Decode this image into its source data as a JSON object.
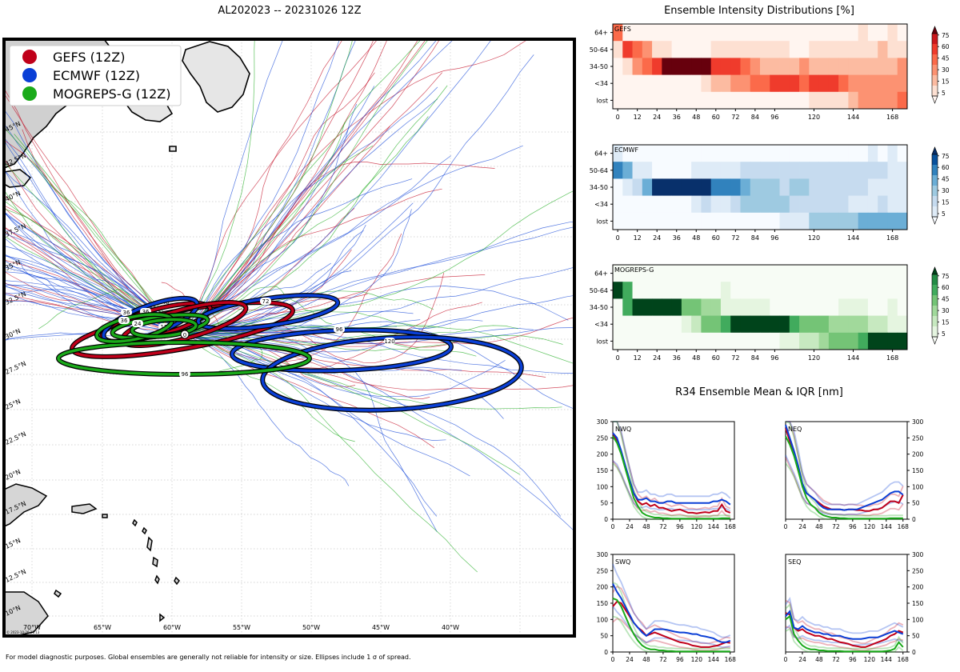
{
  "main_title": "AL202023 -- 20231026 12Z",
  "footer": "For model diagnostic purposes. Global ensembles are generally not reliable for intensity or size. Ellipses include 1 σ of spread.",
  "map": {
    "watermark": "© 2023-10-26 21:13",
    "lon_labels": [
      "70°W",
      "65°W",
      "60°W",
      "55°W",
      "50°W",
      "45°W",
      "40°W"
    ],
    "lat_labels": [
      "10°N",
      "12.5°N",
      "15°N",
      "17.5°N",
      "20°N",
      "22.5°N",
      "25°N",
      "27.5°N",
      "30°N",
      "32.5°N",
      "35°N",
      "37.5°N",
      "40°N",
      "42.5°N",
      "45°N"
    ],
    "legend": [
      {
        "label": "GEFS (12Z)",
        "color": "#c0001a"
      },
      {
        "label": "ECMWF (12Z)",
        "color": "#0a3fd6"
      },
      {
        "label": "MOGREPS-G (12Z)",
        "color": "#1aaa1a"
      }
    ]
  },
  "chart_data": [
    {
      "type": "heatmap",
      "title": "Ensemble Intensity Distributions [%]",
      "panel": "GEFS",
      "rows": [
        "64+",
        "50-64",
        "34-50",
        "<34",
        "lost"
      ],
      "x": [
        0,
        6,
        12,
        18,
        24,
        30,
        36,
        42,
        48,
        54,
        60,
        66,
        72,
        78,
        84,
        90,
        96,
        102,
        108,
        114,
        120,
        126,
        132,
        138,
        144,
        150,
        156,
        162,
        168,
        174
      ],
      "x_ticks": [
        0,
        12,
        24,
        36,
        48,
        60,
        72,
        84,
        96,
        120,
        144,
        168
      ],
      "colorbar_ticks": [
        5,
        15,
        30,
        45,
        60,
        75
      ],
      "values": [
        [
          60,
          5,
          5,
          5,
          5,
          5,
          5,
          5,
          5,
          5,
          5,
          5,
          5,
          5,
          5,
          5,
          5,
          5,
          5,
          5,
          5,
          5,
          5,
          5,
          5,
          15,
          5,
          5,
          15,
          5
        ],
        [
          25,
          80,
          65,
          45,
          15,
          15,
          5,
          5,
          5,
          5,
          15,
          15,
          15,
          15,
          15,
          15,
          15,
          15,
          5,
          5,
          15,
          15,
          15,
          15,
          15,
          15,
          15,
          30,
          15,
          15
        ],
        [
          5,
          15,
          45,
          60,
          75,
          90,
          90,
          90,
          90,
          90,
          75,
          75,
          75,
          60,
          45,
          30,
          30,
          30,
          30,
          45,
          30,
          30,
          30,
          30,
          30,
          30,
          30,
          30,
          30,
          45
        ],
        [
          5,
          5,
          5,
          5,
          5,
          5,
          5,
          5,
          5,
          15,
          30,
          30,
          45,
          45,
          60,
          60,
          75,
          80,
          80,
          60,
          75,
          75,
          75,
          60,
          45,
          45,
          45,
          45,
          45,
          45
        ],
        [
          5,
          5,
          5,
          5,
          5,
          5,
          5,
          5,
          5,
          5,
          5,
          5,
          5,
          5,
          5,
          5,
          5,
          5,
          5,
          5,
          15,
          15,
          15,
          15,
          30,
          45,
          45,
          45,
          45,
          60
        ]
      ]
    },
    {
      "type": "heatmap",
      "panel": "ECMWF",
      "rows": [
        "64+",
        "50-64",
        "34-50",
        "<34",
        "lost"
      ],
      "x": [
        0,
        6,
        12,
        18,
        24,
        30,
        36,
        42,
        48,
        54,
        60,
        66,
        72,
        78,
        84,
        90,
        96,
        102,
        108,
        114,
        120,
        126,
        132,
        138,
        144,
        150,
        156,
        162,
        168,
        174
      ],
      "x_ticks": [
        0,
        12,
        24,
        36,
        48,
        60,
        72,
        84,
        96,
        120,
        144,
        168
      ],
      "colorbar_ticks": [
        5,
        15,
        30,
        45,
        60,
        75
      ],
      "values": [
        [
          15,
          5,
          5,
          5,
          5,
          5,
          5,
          5,
          5,
          5,
          5,
          5,
          5,
          5,
          5,
          5,
          5,
          5,
          5,
          5,
          5,
          5,
          5,
          5,
          5,
          5,
          15,
          5,
          15,
          5
        ],
        [
          75,
          60,
          15,
          15,
          5,
          5,
          5,
          5,
          15,
          15,
          15,
          15,
          15,
          30,
          30,
          30,
          30,
          30,
          30,
          30,
          30,
          30,
          30,
          30,
          30,
          30,
          30,
          30,
          15,
          15
        ],
        [
          5,
          15,
          30,
          60,
          90,
          90,
          90,
          90,
          90,
          90,
          75,
          75,
          75,
          60,
          45,
          45,
          45,
          30,
          45,
          45,
          30,
          30,
          30,
          30,
          30,
          30,
          15,
          15,
          15,
          15
        ],
        [
          5,
          5,
          5,
          5,
          5,
          5,
          5,
          5,
          15,
          30,
          15,
          15,
          30,
          45,
          45,
          45,
          45,
          45,
          30,
          30,
          30,
          30,
          30,
          30,
          15,
          15,
          15,
          30,
          15,
          15
        ],
        [
          5,
          5,
          5,
          5,
          5,
          5,
          5,
          5,
          5,
          5,
          5,
          5,
          5,
          5,
          5,
          5,
          5,
          15,
          15,
          15,
          45,
          45,
          45,
          45,
          45,
          60,
          60,
          60,
          60,
          60
        ]
      ]
    },
    {
      "type": "heatmap",
      "panel": "MOGREPS-G",
      "rows": [
        "64+",
        "50-64",
        "34-50",
        "<34",
        "lost"
      ],
      "x": [
        0,
        6,
        12,
        18,
        24,
        30,
        36,
        42,
        48,
        54,
        60,
        66,
        72,
        78,
        84,
        90,
        96,
        102,
        108,
        114,
        120,
        126,
        132,
        138,
        144,
        150,
        156,
        162,
        168,
        174
      ],
      "x_ticks": [
        0,
        12,
        24,
        36,
        48,
        60,
        72,
        84,
        96,
        120,
        144,
        168
      ],
      "colorbar_ticks": [
        5,
        15,
        30,
        45,
        60,
        75
      ],
      "values": [
        [
          5,
          5,
          5,
          5,
          5,
          5,
          5,
          5,
          5,
          5,
          5,
          5,
          5,
          5,
          5,
          5,
          5,
          5,
          5,
          5,
          5,
          5,
          5,
          5,
          5,
          5,
          5,
          5,
          5,
          5
        ],
        [
          90,
          75,
          5,
          5,
          5,
          5,
          5,
          5,
          5,
          5,
          5,
          15,
          5,
          5,
          5,
          5,
          5,
          5,
          5,
          5,
          5,
          5,
          5,
          5,
          5,
          5,
          5,
          5,
          5,
          5
        ],
        [
          5,
          75,
          90,
          90,
          90,
          90,
          90,
          60,
          60,
          45,
          45,
          15,
          15,
          15,
          15,
          15,
          5,
          5,
          5,
          5,
          5,
          5,
          5,
          15,
          15,
          15,
          5,
          5,
          15,
          5
        ],
        [
          5,
          5,
          5,
          5,
          5,
          5,
          5,
          15,
          30,
          60,
          60,
          75,
          90,
          90,
          90,
          90,
          90,
          90,
          75,
          60,
          60,
          60,
          45,
          45,
          45,
          45,
          30,
          30,
          15,
          15
        ],
        [
          5,
          5,
          5,
          5,
          5,
          5,
          5,
          5,
          5,
          5,
          5,
          5,
          5,
          5,
          5,
          5,
          5,
          15,
          15,
          30,
          30,
          45,
          60,
          60,
          60,
          75,
          90,
          90,
          90,
          90
        ]
      ]
    },
    {
      "type": "line",
      "title": "R34 Ensemble Mean & IQR [nm]",
      "panel": "NWQ",
      "x": [
        0,
        6,
        12,
        18,
        24,
        30,
        36,
        42,
        48,
        54,
        60,
        66,
        72,
        78,
        84,
        90,
        96,
        102,
        108,
        114,
        120,
        126,
        132,
        138,
        144,
        150,
        156,
        162,
        168
      ],
      "x_ticks": [
        0,
        24,
        48,
        72,
        96,
        120,
        144,
        168
      ],
      "ylim": [
        0,
        300
      ],
      "y_ticks": [
        0,
        50,
        100,
        150,
        200,
        250,
        300
      ],
      "series": [
        {
          "name": "GEFS",
          "color": "#c0001a",
          "values": [
            265,
            240,
            205,
            160,
            120,
            80,
            55,
            45,
            50,
            40,
            45,
            35,
            35,
            30,
            25,
            28,
            30,
            25,
            20,
            20,
            18,
            20,
            22,
            20,
            25,
            25,
            45,
            25,
            20
          ]
        },
        {
          "name": "ECMWF",
          "color": "#0a3fd6",
          "values": [
            265,
            250,
            210,
            165,
            120,
            80,
            60,
            60,
            65,
            55,
            55,
            50,
            50,
            55,
            55,
            50,
            50,
            50,
            50,
            50,
            50,
            50,
            50,
            50,
            55,
            55,
            60,
            55,
            45
          ]
        },
        {
          "name": "MOGREPS-G",
          "color": "#1aaa1a",
          "values": [
            255,
            235,
            200,
            155,
            110,
            65,
            40,
            20,
            12,
            8,
            5,
            5,
            3,
            3,
            2,
            2,
            2,
            2,
            2,
            2,
            2,
            2,
            2,
            2,
            2,
            2,
            3,
            3,
            3
          ]
        }
      ]
    },
    {
      "type": "line",
      "panel": "NEQ",
      "x": [
        0,
        6,
        12,
        18,
        24,
        30,
        36,
        42,
        48,
        54,
        60,
        66,
        72,
        78,
        84,
        90,
        96,
        102,
        108,
        114,
        120,
        126,
        132,
        138,
        144,
        150,
        156,
        162,
        168
      ],
      "x_ticks": [
        0,
        24,
        48,
        72,
        96,
        120,
        144,
        168
      ],
      "ylim": [
        0,
        300
      ],
      "y_ticks": [
        0,
        50,
        100,
        150,
        200,
        250,
        300
      ],
      "series": [
        {
          "name": "GEFS",
          "color": "#c0001a",
          "values": [
            280,
            240,
            200,
            150,
            105,
            80,
            70,
            60,
            50,
            40,
            35,
            30,
            30,
            30,
            28,
            30,
            30,
            28,
            28,
            25,
            25,
            30,
            30,
            35,
            45,
            55,
            55,
            50,
            75
          ]
        },
        {
          "name": "ECMWF",
          "color": "#0a3fd6",
          "values": [
            290,
            250,
            210,
            165,
            110,
            80,
            70,
            60,
            45,
            35,
            30,
            30,
            30,
            30,
            28,
            30,
            30,
            30,
            35,
            40,
            45,
            50,
            55,
            60,
            70,
            80,
            85,
            85,
            75
          ]
        },
        {
          "name": "MOGREPS-G",
          "color": "#1aaa1a",
          "values": [
            255,
            230,
            195,
            150,
            100,
            65,
            45,
            35,
            20,
            12,
            8,
            5,
            5,
            3,
            3,
            2,
            2,
            2,
            2,
            2,
            2,
            2,
            2,
            2,
            2,
            3,
            3,
            3,
            3
          ]
        }
      ]
    },
    {
      "type": "line",
      "panel": "SWQ",
      "x": [
        0,
        6,
        12,
        18,
        24,
        30,
        36,
        42,
        48,
        54,
        60,
        66,
        72,
        78,
        84,
        90,
        96,
        102,
        108,
        114,
        120,
        126,
        132,
        138,
        144,
        150,
        156,
        162,
        168
      ],
      "x_ticks": [
        0,
        24,
        48,
        72,
        96,
        120,
        144,
        168
      ],
      "ylim": [
        0,
        300
      ],
      "y_ticks": [
        0,
        50,
        100,
        150,
        200,
        250,
        300
      ],
      "series": [
        {
          "name": "GEFS",
          "color": "#c0001a",
          "values": [
            140,
            155,
            150,
            130,
            110,
            90,
            75,
            65,
            50,
            55,
            60,
            55,
            50,
            45,
            40,
            35,
            30,
            28,
            25,
            20,
            18,
            15,
            15,
            15,
            18,
            20,
            25,
            30,
            28
          ]
        },
        {
          "name": "ECMWF",
          "color": "#0a3fd6",
          "values": [
            210,
            185,
            165,
            140,
            115,
            90,
            75,
            60,
            50,
            60,
            70,
            70,
            70,
            68,
            65,
            62,
            60,
            60,
            58,
            55,
            55,
            50,
            48,
            45,
            42,
            35,
            30,
            30,
            35
          ]
        },
        {
          "name": "MOGREPS-G",
          "color": "#1aaa1a",
          "values": [
            165,
            160,
            140,
            110,
            80,
            55,
            35,
            20,
            12,
            8,
            8,
            5,
            5,
            3,
            3,
            2,
            2,
            2,
            2,
            2,
            2,
            2,
            2,
            2,
            2,
            2,
            2,
            2,
            2
          ]
        }
      ]
    },
    {
      "type": "line",
      "panel": "SEQ",
      "x": [
        0,
        6,
        12,
        18,
        24,
        30,
        36,
        42,
        48,
        54,
        60,
        66,
        72,
        78,
        84,
        90,
        96,
        102,
        108,
        114,
        120,
        126,
        132,
        138,
        144,
        150,
        156,
        162,
        168
      ],
      "x_ticks": [
        0,
        24,
        48,
        72,
        96,
        120,
        144,
        168
      ],
      "ylim": [
        0,
        300
      ],
      "y_ticks": [
        0,
        50,
        100,
        150,
        200,
        250,
        300
      ],
      "series": [
        {
          "name": "GEFS",
          "color": "#c0001a",
          "values": [
            120,
            115,
            75,
            65,
            70,
            60,
            55,
            50,
            50,
            45,
            40,
            40,
            35,
            30,
            28,
            25,
            20,
            18,
            15,
            15,
            20,
            25,
            30,
            35,
            40,
            50,
            55,
            65,
            60
          ]
        },
        {
          "name": "ECMWF",
          "color": "#0a3fd6",
          "values": [
            110,
            125,
            75,
            70,
            80,
            70,
            65,
            60,
            60,
            55,
            55,
            50,
            50,
            50,
            45,
            42,
            40,
            40,
            40,
            42,
            45,
            45,
            45,
            50,
            55,
            60,
            65,
            60,
            55
          ]
        },
        {
          "name": "MOGREPS-G",
          "color": "#1aaa1a",
          "values": [
            100,
            110,
            55,
            35,
            20,
            12,
            8,
            8,
            5,
            5,
            3,
            3,
            3,
            3,
            2,
            2,
            2,
            2,
            2,
            2,
            2,
            2,
            2,
            2,
            3,
            5,
            10,
            30,
            15
          ]
        }
      ]
    }
  ]
}
